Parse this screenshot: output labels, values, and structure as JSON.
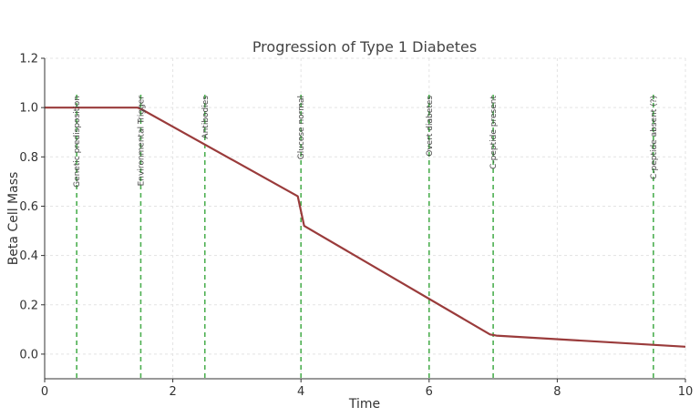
{
  "chart_data": {
    "type": "line",
    "title": "Progression of Type 1 Diabetes",
    "xlabel": "Time",
    "ylabel": "Beta Cell Mass",
    "xlim": [
      0,
      10
    ],
    "ylim": [
      -0.1,
      1.2
    ],
    "x_ticks": [
      0,
      2,
      4,
      6,
      8,
      10
    ],
    "y_ticks": [
      0.0,
      0.2,
      0.4,
      0.6,
      0.8,
      1.0,
      1.2
    ],
    "x_tick_labels": [
      "0",
      "2",
      "4",
      "6",
      "8",
      "10"
    ],
    "y_tick_labels": [
      "0.0",
      "0.2",
      "0.4",
      "0.6",
      "0.8",
      "1.0",
      "1.2"
    ],
    "grid": true,
    "series": [
      {
        "name": "Beta Cell Mass",
        "color": "#9a3b3b",
        "x": [
          0,
          1.45,
          1.5,
          3.95,
          4.05,
          6.95,
          7.05,
          10
        ],
        "y": [
          1.0,
          1.0,
          0.995,
          0.64,
          0.52,
          0.08,
          0.075,
          0.03
        ]
      }
    ],
    "events": [
      {
        "x": 0.5,
        "label": "Genetic predisposition"
      },
      {
        "x": 1.5,
        "label": "Environmental Trigger"
      },
      {
        "x": 2.5,
        "label": "Antibodies"
      },
      {
        "x": 4.0,
        "label": "Glucose normal"
      },
      {
        "x": 6.0,
        "label": "Overt diabetes"
      },
      {
        "x": 7.0,
        "label": "C-peptide present"
      },
      {
        "x": 9.5,
        "label": "C-peptide absent (?)"
      }
    ],
    "event_color": "#4caf50"
  }
}
